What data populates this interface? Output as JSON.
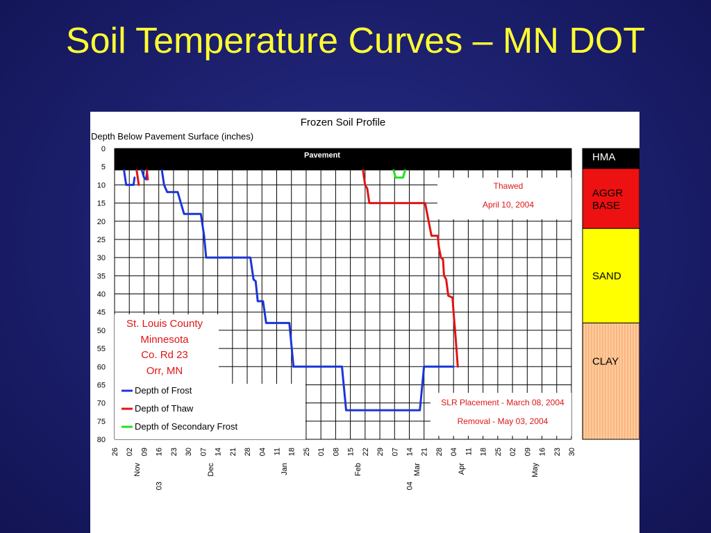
{
  "slide": {
    "title": "Soil Temperature Curves – MN DOT"
  },
  "chart_data": {
    "type": "line",
    "title": "Frozen Soil Profile",
    "ylabel": "Depth Below Pavement Surface (inches)",
    "ylim": [
      0,
      80
    ],
    "y_inverted": true,
    "yticks": [
      0,
      5,
      10,
      15,
      20,
      25,
      30,
      35,
      40,
      45,
      50,
      55,
      60,
      65,
      70,
      75,
      80
    ],
    "grid": true,
    "x_axis": {
      "unit": "days",
      "range": [
        0,
        217
      ],
      "ticks": [
        {
          "day": 0,
          "label": "26"
        },
        {
          "day": 7,
          "label": "02"
        },
        {
          "day": 14,
          "label": "09"
        },
        {
          "day": 21,
          "label": "16"
        },
        {
          "day": 28,
          "label": "23"
        },
        {
          "day": 35,
          "label": "30"
        },
        {
          "day": 42,
          "label": "07"
        },
        {
          "day": 49,
          "label": "14"
        },
        {
          "day": 56,
          "label": "21"
        },
        {
          "day": 63,
          "label": "28"
        },
        {
          "day": 70,
          "label": "04"
        },
        {
          "day": 77,
          "label": "11"
        },
        {
          "day": 84,
          "label": "18"
        },
        {
          "day": 91,
          "label": "25"
        },
        {
          "day": 98,
          "label": "01"
        },
        {
          "day": 105,
          "label": "08"
        },
        {
          "day": 112,
          "label": "15"
        },
        {
          "day": 119,
          "label": "22"
        },
        {
          "day": 126,
          "label": "29"
        },
        {
          "day": 133,
          "label": "07"
        },
        {
          "day": 140,
          "label": "14"
        },
        {
          "day": 147,
          "label": "21"
        },
        {
          "day": 154,
          "label": "28"
        },
        {
          "day": 161,
          "label": "04"
        },
        {
          "day": 168,
          "label": "11"
        },
        {
          "day": 175,
          "label": "18"
        },
        {
          "day": 182,
          "label": "25"
        },
        {
          "day": 189,
          "label": "02"
        },
        {
          "day": 196,
          "label": "09"
        },
        {
          "day": 203,
          "label": "16"
        },
        {
          "day": 210,
          "label": "23"
        },
        {
          "day": 217,
          "label": "30"
        }
      ],
      "month_labels": [
        {
          "day": 10.5,
          "label": "Nov"
        },
        {
          "day": 45.5,
          "label": "Dec"
        },
        {
          "day": 80.5,
          "label": "Jan"
        },
        {
          "day": 115.5,
          "label": "Feb"
        },
        {
          "day": 143.5,
          "label": "Mar"
        },
        {
          "day": 164.5,
          "label": "Apr"
        },
        {
          "day": 199.5,
          "label": "May"
        }
      ],
      "year_labels": [
        {
          "day": 21,
          "label": "03"
        },
        {
          "day": 140,
          "label": "04"
        }
      ]
    },
    "pavement_band": {
      "from": 0,
      "to": 6,
      "label": "Pavement"
    },
    "series": [
      {
        "name": "Depth of Frost",
        "color": "#1b35d8",
        "segments": [
          [
            [
              4.5,
              6
            ],
            [
              5.5,
              10
            ],
            [
              9,
              10
            ],
            [
              9.5,
              8
            ]
          ],
          [
            [
              13,
              6
            ],
            [
              14,
              8
            ],
            [
              15,
              8.5
            ],
            [
              15.5,
              6
            ]
          ],
          [
            [
              22.5,
              6
            ],
            [
              23.5,
              10
            ],
            [
              25,
              12
            ],
            [
              30,
              12
            ],
            [
              31.5,
              15
            ],
            [
              33,
              18
            ],
            [
              41,
              18
            ],
            [
              42.5,
              24
            ],
            [
              43.5,
              30
            ],
            [
              64.5,
              30
            ],
            [
              66,
              36
            ],
            [
              67,
              36.5
            ],
            [
              68,
              42
            ],
            [
              70.5,
              42
            ],
            [
              72,
              48
            ],
            [
              83,
              48
            ],
            [
              84,
              54
            ],
            [
              85,
              60
            ],
            [
              108,
              60
            ],
            [
              109,
              66
            ],
            [
              110,
              72
            ],
            [
              145,
              72
            ],
            [
              146,
              66
            ],
            [
              147,
              60
            ],
            [
              161,
              60
            ]
          ]
        ]
      },
      {
        "name": "Depth of Thaw",
        "color": "#e01414",
        "segments": [
          [
            [
              10.5,
              6
            ],
            [
              11.5,
              10
            ]
          ],
          [
            [
              15.3,
              6
            ],
            [
              15.8,
              8.5
            ]
          ],
          [
            [
              118,
              6
            ],
            [
              119,
              10
            ],
            [
              120,
              11
            ],
            [
              121,
              15
            ],
            [
              147.5,
              15
            ],
            [
              148.5,
              18
            ],
            [
              150.5,
              24
            ],
            [
              153.5,
              24
            ],
            [
              154,
              27
            ],
            [
              155,
              30
            ],
            [
              156,
              30.5
            ],
            [
              156.5,
              35
            ],
            [
              157.5,
              36
            ],
            [
              158.5,
              40.5
            ],
            [
              160.5,
              41
            ],
            [
              161,
              45
            ],
            [
              162,
              52
            ],
            [
              163,
              60
            ]
          ]
        ]
      },
      {
        "name": "Depth of Secondary Frost",
        "color": "#22e022",
        "segments": [
          [
            [
              132.5,
              6
            ],
            [
              133.5,
              8
            ],
            [
              137,
              8
            ],
            [
              138,
              6
            ]
          ]
        ]
      }
    ],
    "annotations": {
      "thawed": [
        "Thawed",
        "April 10, 2004"
      ],
      "location": [
        "St. Louis County",
        "Minnesota",
        "Co. Rd 23",
        "Orr, MN"
      ],
      "placement": [
        "SLR Placement - March 08, 2004",
        "Removal - May 03, 2004"
      ]
    },
    "legend_position": "bottom-left",
    "layers": [
      {
        "label": "HMA",
        "from": 0,
        "to": 5.5,
        "color": "#000000",
        "text_color": "#ffffff"
      },
      {
        "label": "AGGR BASE",
        "from": 5.5,
        "to": 22,
        "color": "#ee1111",
        "text_color": "#000000"
      },
      {
        "label": "SAND",
        "from": 22,
        "to": 48,
        "color": "#ffff00",
        "text_color": "#000000"
      },
      {
        "label": "CLAY",
        "from": 48,
        "to": 80,
        "color": "#ffcc99",
        "text_color": "#000000",
        "hatched": true
      }
    ]
  }
}
